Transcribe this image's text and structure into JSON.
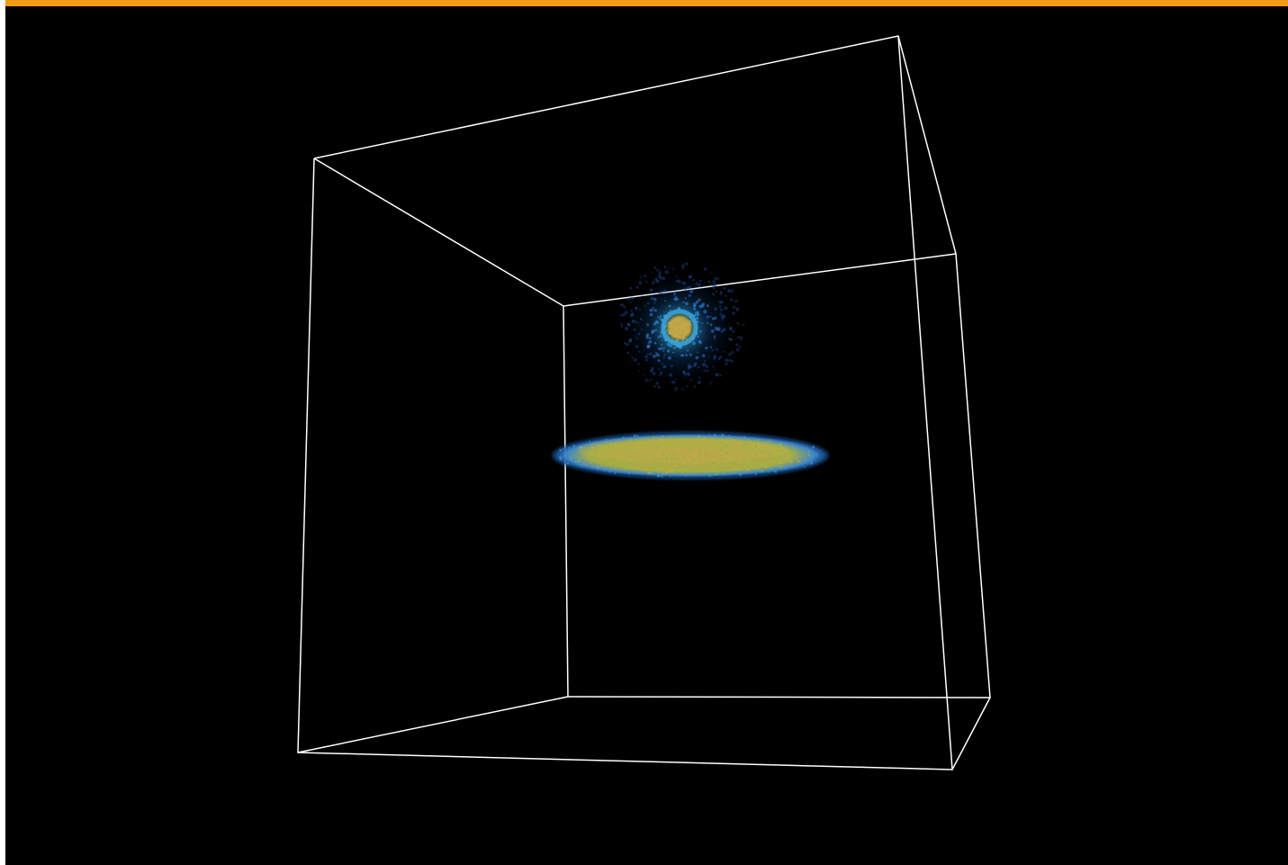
{
  "window": {
    "accent_color": "#f39c12",
    "background_color": "#000000"
  },
  "scene": {
    "bounding_box_color": "#ffffff",
    "objects": [
      {
        "name": "spherical-particle-cloud",
        "core_color": "#c8a640",
        "halo_color": "#2f8fd8"
      },
      {
        "name": "particle-disk",
        "fill_color": "#b7b246",
        "edge_color": "#2f78c8"
      }
    ]
  }
}
